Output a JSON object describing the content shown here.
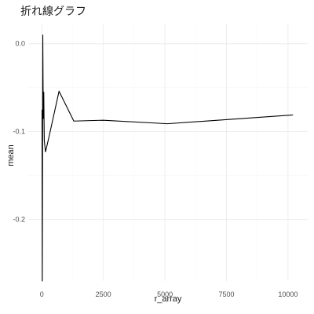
{
  "chart_data": {
    "type": "line",
    "title": "折れ線グラフ",
    "xlabel": "r_array",
    "ylabel": "mean",
    "xlim": [
      -550,
      10800
    ],
    "ylim": [
      -0.27,
      0.023
    ],
    "x_ticks": [
      0,
      2500,
      5000,
      7500,
      10000
    ],
    "x_tick_labels": [
      "0",
      "2500",
      "5000",
      "7500",
      "10000"
    ],
    "y_ticks": [
      0.0,
      -0.1,
      -0.2
    ],
    "y_tick_labels": [
      "0.0",
      "-0.1",
      "-0.2"
    ],
    "grid": true,
    "legend": "none",
    "series": [
      {
        "color": "#000000",
        "x": [
          10,
          20,
          40,
          50,
          60,
          80,
          100,
          150,
          300,
          700,
          1300,
          2500,
          5100,
          10200
        ],
        "y": [
          -0.075,
          -0.27,
          0.01,
          -0.04,
          -0.085,
          -0.055,
          -0.11,
          -0.123,
          -0.105,
          -0.054,
          -0.088,
          -0.087,
          -0.091,
          -0.081
        ]
      }
    ]
  }
}
